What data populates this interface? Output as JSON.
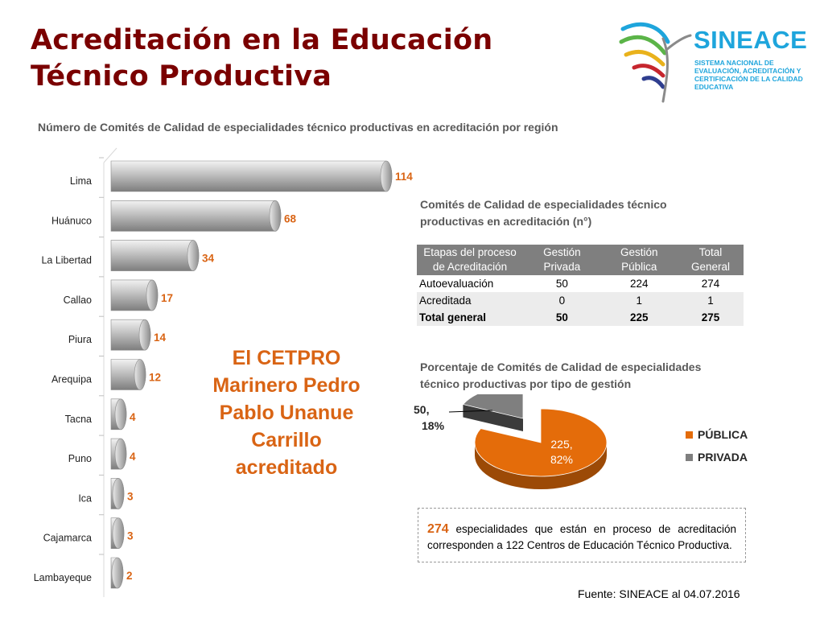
{
  "header": {
    "title": "Acreditación en la Educación Técnico Productiva",
    "logo": {
      "name": "SINEACE",
      "subtitle": "SISTEMA NACIONAL DE EVALUACIÓN, ACREDITACIÓN Y CERTIFICACIÓN DE LA CALIDAD EDUCATIVA"
    }
  },
  "callout": "El CETPRO Marinero Pedro Pablo Unanue Carrillo acreditado",
  "chart_data": [
    {
      "type": "bar",
      "orientation": "horizontal",
      "title": "Número de Comités de Calidad de especialidades técnico productivas en acreditación por región",
      "categories": [
        "Lima",
        "Huánuco",
        "La Libertad",
        "Callao",
        "Piura",
        "Arequipa",
        "Tacna",
        "Puno",
        "Ica",
        "Cajamarca",
        "Lambayeque"
      ],
      "values": [
        114,
        68,
        34,
        17,
        14,
        12,
        4,
        4,
        3,
        3,
        2
      ],
      "bar_color": "#b3b3b3",
      "label_color": "#d96414",
      "legend": "none",
      "grid": false
    },
    {
      "type": "table",
      "title": "Comités de Calidad de especialidades técnico productivas en acreditación  (n°)",
      "columns": [
        "Etapas del proceso de Acreditación",
        "Gestión Privada",
        "Gestión Pública",
        "Total General"
      ],
      "rows": [
        [
          "Autoevaluación",
          "50",
          "224",
          "274"
        ],
        [
          "Acreditada",
          "0",
          "1",
          "1"
        ],
        [
          "Total general",
          "50",
          "225",
          "275"
        ]
      ]
    },
    {
      "type": "pie",
      "style": "3d",
      "title": "Porcentaje de Comités de Calidad de especialidades técnico productivas por tipo de gestión",
      "categories": [
        "PÚBLICA",
        "PRIVADA"
      ],
      "values": [
        225,
        50
      ],
      "percentages": [
        82,
        18
      ],
      "data_labels": [
        "225, 82%",
        "50, 18%"
      ],
      "colors": [
        "#e46c0a",
        "#7f7f7f"
      ],
      "legend": "right"
    }
  ],
  "note": {
    "number": "274",
    "text": " especialidades que están en proceso de acreditación corresponden a 122 Centros de Educación Técnico Productiva."
  },
  "source": "Fuente: SINEACE al  04.07.2016"
}
